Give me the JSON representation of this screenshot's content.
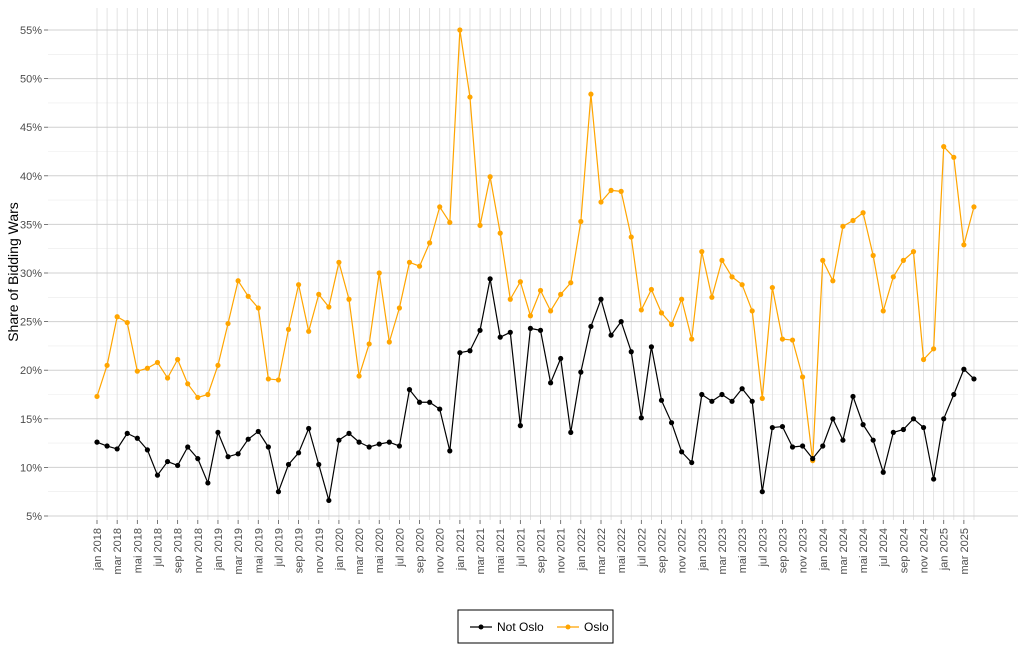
{
  "chart_data": {
    "type": "line",
    "ylabel": "Share of Bidding Wars",
    "xlabel": "",
    "ylim": [
      0.05,
      0.55
    ],
    "y_ticks": [
      0.05,
      0.1,
      0.15,
      0.2,
      0.25,
      0.3,
      0.35,
      0.4,
      0.45,
      0.5,
      0.55
    ],
    "y_tick_labels": [
      "5%",
      "10%",
      "15%",
      "20%",
      "25%",
      "30%",
      "35%",
      "40%",
      "45%",
      "50%",
      "55%"
    ],
    "grid": true,
    "legend": "bottom",
    "x": [
      "2018-01",
      "2018-02",
      "2018-03",
      "2018-04",
      "2018-05",
      "2018-06",
      "2018-07",
      "2018-08",
      "2018-09",
      "2018-10",
      "2018-11",
      "2018-12",
      "2019-01",
      "2019-02",
      "2019-03",
      "2019-04",
      "2019-05",
      "2019-06",
      "2019-07",
      "2019-08",
      "2019-09",
      "2019-10",
      "2019-11",
      "2019-12",
      "2020-01",
      "2020-02",
      "2020-03",
      "2020-04",
      "2020-05",
      "2020-06",
      "2020-07",
      "2020-08",
      "2020-09",
      "2020-10",
      "2020-11",
      "2020-12",
      "2021-01",
      "2021-02",
      "2021-03",
      "2021-04",
      "2021-05",
      "2021-06",
      "2021-07",
      "2021-08",
      "2021-09",
      "2021-10",
      "2021-11",
      "2021-12",
      "2022-01",
      "2022-02",
      "2022-03",
      "2022-04",
      "2022-05",
      "2022-06",
      "2022-07",
      "2022-08",
      "2022-09",
      "2022-10",
      "2022-11",
      "2022-12",
      "2023-01",
      "2023-02",
      "2023-03",
      "2023-04",
      "2023-05",
      "2023-06",
      "2023-07",
      "2023-08",
      "2023-09",
      "2023-10",
      "2023-11",
      "2023-12",
      "2024-01",
      "2024-02",
      "2024-03",
      "2024-04",
      "2024-05",
      "2024-06",
      "2024-07",
      "2024-08",
      "2024-09",
      "2024-10",
      "2024-11",
      "2024-12",
      "2025-01",
      "2025-02",
      "2025-03",
      "2025-04"
    ],
    "x_tick_labels": [
      "jan 2018",
      "mar 2018",
      "mai 2018",
      "jul 2018",
      "sep 2018",
      "nov 2018",
      "jan 2019",
      "mar 2019",
      "mai 2019",
      "jul 2019",
      "sep 2019",
      "nov 2019",
      "jan 2020",
      "mar 2020",
      "mai 2020",
      "jul 2020",
      "sep 2020",
      "nov 2020",
      "jan 2021",
      "mar 2021",
      "mai 2021",
      "jul 2021",
      "sep 2021",
      "nov 2021",
      "jan 2022",
      "mar 2022",
      "mai 2022",
      "jul 2022",
      "sep 2022",
      "nov 2022",
      "jan 2023",
      "mar 2023",
      "mai 2023",
      "jul 2023",
      "sep 2023",
      "nov 2023",
      "jan 2024",
      "mar 2024",
      "mai 2024",
      "jul 2024",
      "sep 2024",
      "nov 2024",
      "jan 2025",
      "mar 2025"
    ],
    "series": [
      {
        "name": "Not Oslo",
        "color": "#000000",
        "values": [
          0.126,
          0.122,
          0.119,
          0.135,
          0.13,
          0.118,
          0.092,
          0.106,
          0.102,
          0.121,
          0.109,
          0.084,
          0.136,
          0.111,
          0.114,
          0.129,
          0.137,
          0.121,
          0.075,
          0.103,
          0.115,
          0.14,
          0.103,
          0.066,
          0.128,
          0.135,
          0.126,
          0.121,
          0.124,
          0.126,
          0.122,
          0.18,
          0.167,
          0.167,
          0.16,
          0.117,
          0.218,
          0.22,
          0.241,
          0.294,
          0.234,
          0.239,
          0.143,
          0.243,
          0.241,
          0.187,
          0.212,
          0.136,
          0.198,
          0.245,
          0.273,
          0.236,
          0.25,
          0.219,
          0.151,
          0.224,
          0.169,
          0.146,
          0.116,
          0.105,
          0.175,
          0.168,
          0.175,
          0.168,
          0.181,
          0.168,
          0.075,
          0.141,
          0.142,
          0.121,
          0.122,
          0.109,
          0.122,
          0.15,
          0.128,
          0.173,
          0.144,
          0.128,
          0.095,
          0.136,
          0.139,
          0.15,
          0.141,
          0.088,
          0.15,
          0.175,
          0.201,
          0.191
        ]
      },
      {
        "name": "Oslo",
        "color": "#FFA500",
        "values": [
          0.173,
          0.205,
          0.255,
          0.249,
          0.199,
          0.202,
          0.208,
          0.192,
          0.211,
          0.186,
          0.172,
          0.175,
          0.205,
          0.248,
          0.292,
          0.276,
          0.264,
          0.191,
          0.19,
          0.242,
          0.288,
          0.24,
          0.278,
          0.265,
          0.311,
          0.273,
          0.194,
          0.227,
          0.3,
          0.229,
          0.264,
          0.311,
          0.307,
          0.331,
          0.368,
          0.352,
          0.55,
          0.481,
          0.349,
          0.399,
          0.341,
          0.273,
          0.291,
          0.256,
          0.282,
          0.261,
          0.278,
          0.29,
          0.353,
          0.484,
          0.373,
          0.385,
          0.384,
          0.337,
          0.262,
          0.283,
          0.259,
          0.247,
          0.273,
          0.232,
          0.322,
          0.275,
          0.313,
          0.296,
          0.288,
          0.261,
          0.171,
          0.285,
          0.232,
          0.231,
          0.193,
          0.107,
          0.313,
          0.292,
          0.348,
          0.354,
          0.362,
          0.318,
          0.261,
          0.296,
          0.313,
          0.322,
          0.211,
          0.222,
          0.43,
          0.419,
          0.329,
          0.368
        ]
      }
    ]
  }
}
